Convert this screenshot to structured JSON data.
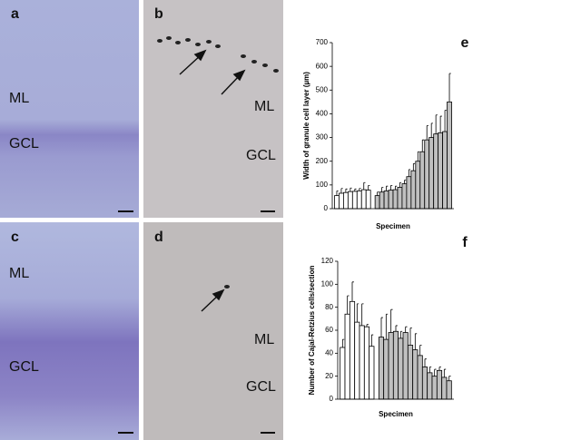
{
  "panels": [
    {
      "label": "a",
      "texts": [
        "ML",
        "GCL"
      ]
    },
    {
      "label": "b",
      "texts": [
        "ML",
        "GCL"
      ]
    },
    {
      "label": "c",
      "texts": [
        "ML",
        "GCL"
      ]
    },
    {
      "label": "d",
      "texts": [
        "ML",
        "GCL"
      ]
    }
  ],
  "chart_data": [
    {
      "type": "bar",
      "panel_label": "e",
      "y_label": "Width of granule cell layer (µm)",
      "x_label": "Specimen",
      "ylim": [
        0,
        700
      ],
      "yticks": [
        0,
        100,
        200,
        300,
        400,
        500,
        600,
        700
      ],
      "groups": [
        {
          "color": "#ffffff",
          "values": [
            55,
            65,
            68,
            72,
            73,
            75,
            80,
            78
          ],
          "errors": [
            20,
            20,
            15,
            15,
            10,
            10,
            30,
            20
          ]
        },
        {
          "color": "#c0c0c0",
          "values": [
            55,
            70,
            75,
            78,
            80,
            90,
            105,
            135,
            160,
            200,
            240,
            290,
            300,
            315,
            320,
            325,
            450
          ],
          "errors": [
            15,
            20,
            20,
            20,
            15,
            20,
            15,
            30,
            30,
            40,
            50,
            60,
            60,
            80,
            70,
            90,
            120
          ]
        }
      ]
    },
    {
      "type": "bar",
      "panel_label": "f",
      "y_label": "Number of Cajal-Retzius cells/section",
      "x_label": "Specimen",
      "ylim": [
        0,
        120
      ],
      "yticks": [
        0,
        20,
        40,
        60,
        80,
        100,
        120
      ],
      "groups": [
        {
          "color": "#ffffff",
          "values": [
            45,
            74,
            85,
            67,
            64,
            63,
            46
          ],
          "errors": [
            7,
            16,
            17,
            16,
            19,
            2,
            10
          ]
        },
        {
          "color": "#c0c0c0",
          "values": [
            54,
            52,
            58,
            59,
            53,
            58,
            47,
            43,
            38,
            28,
            23,
            20,
            25,
            19,
            16
          ],
          "errors": [
            17,
            22,
            20,
            5,
            6,
            5,
            15,
            14,
            9,
            7,
            5,
            6,
            3,
            7,
            4
          ]
        }
      ]
    }
  ]
}
